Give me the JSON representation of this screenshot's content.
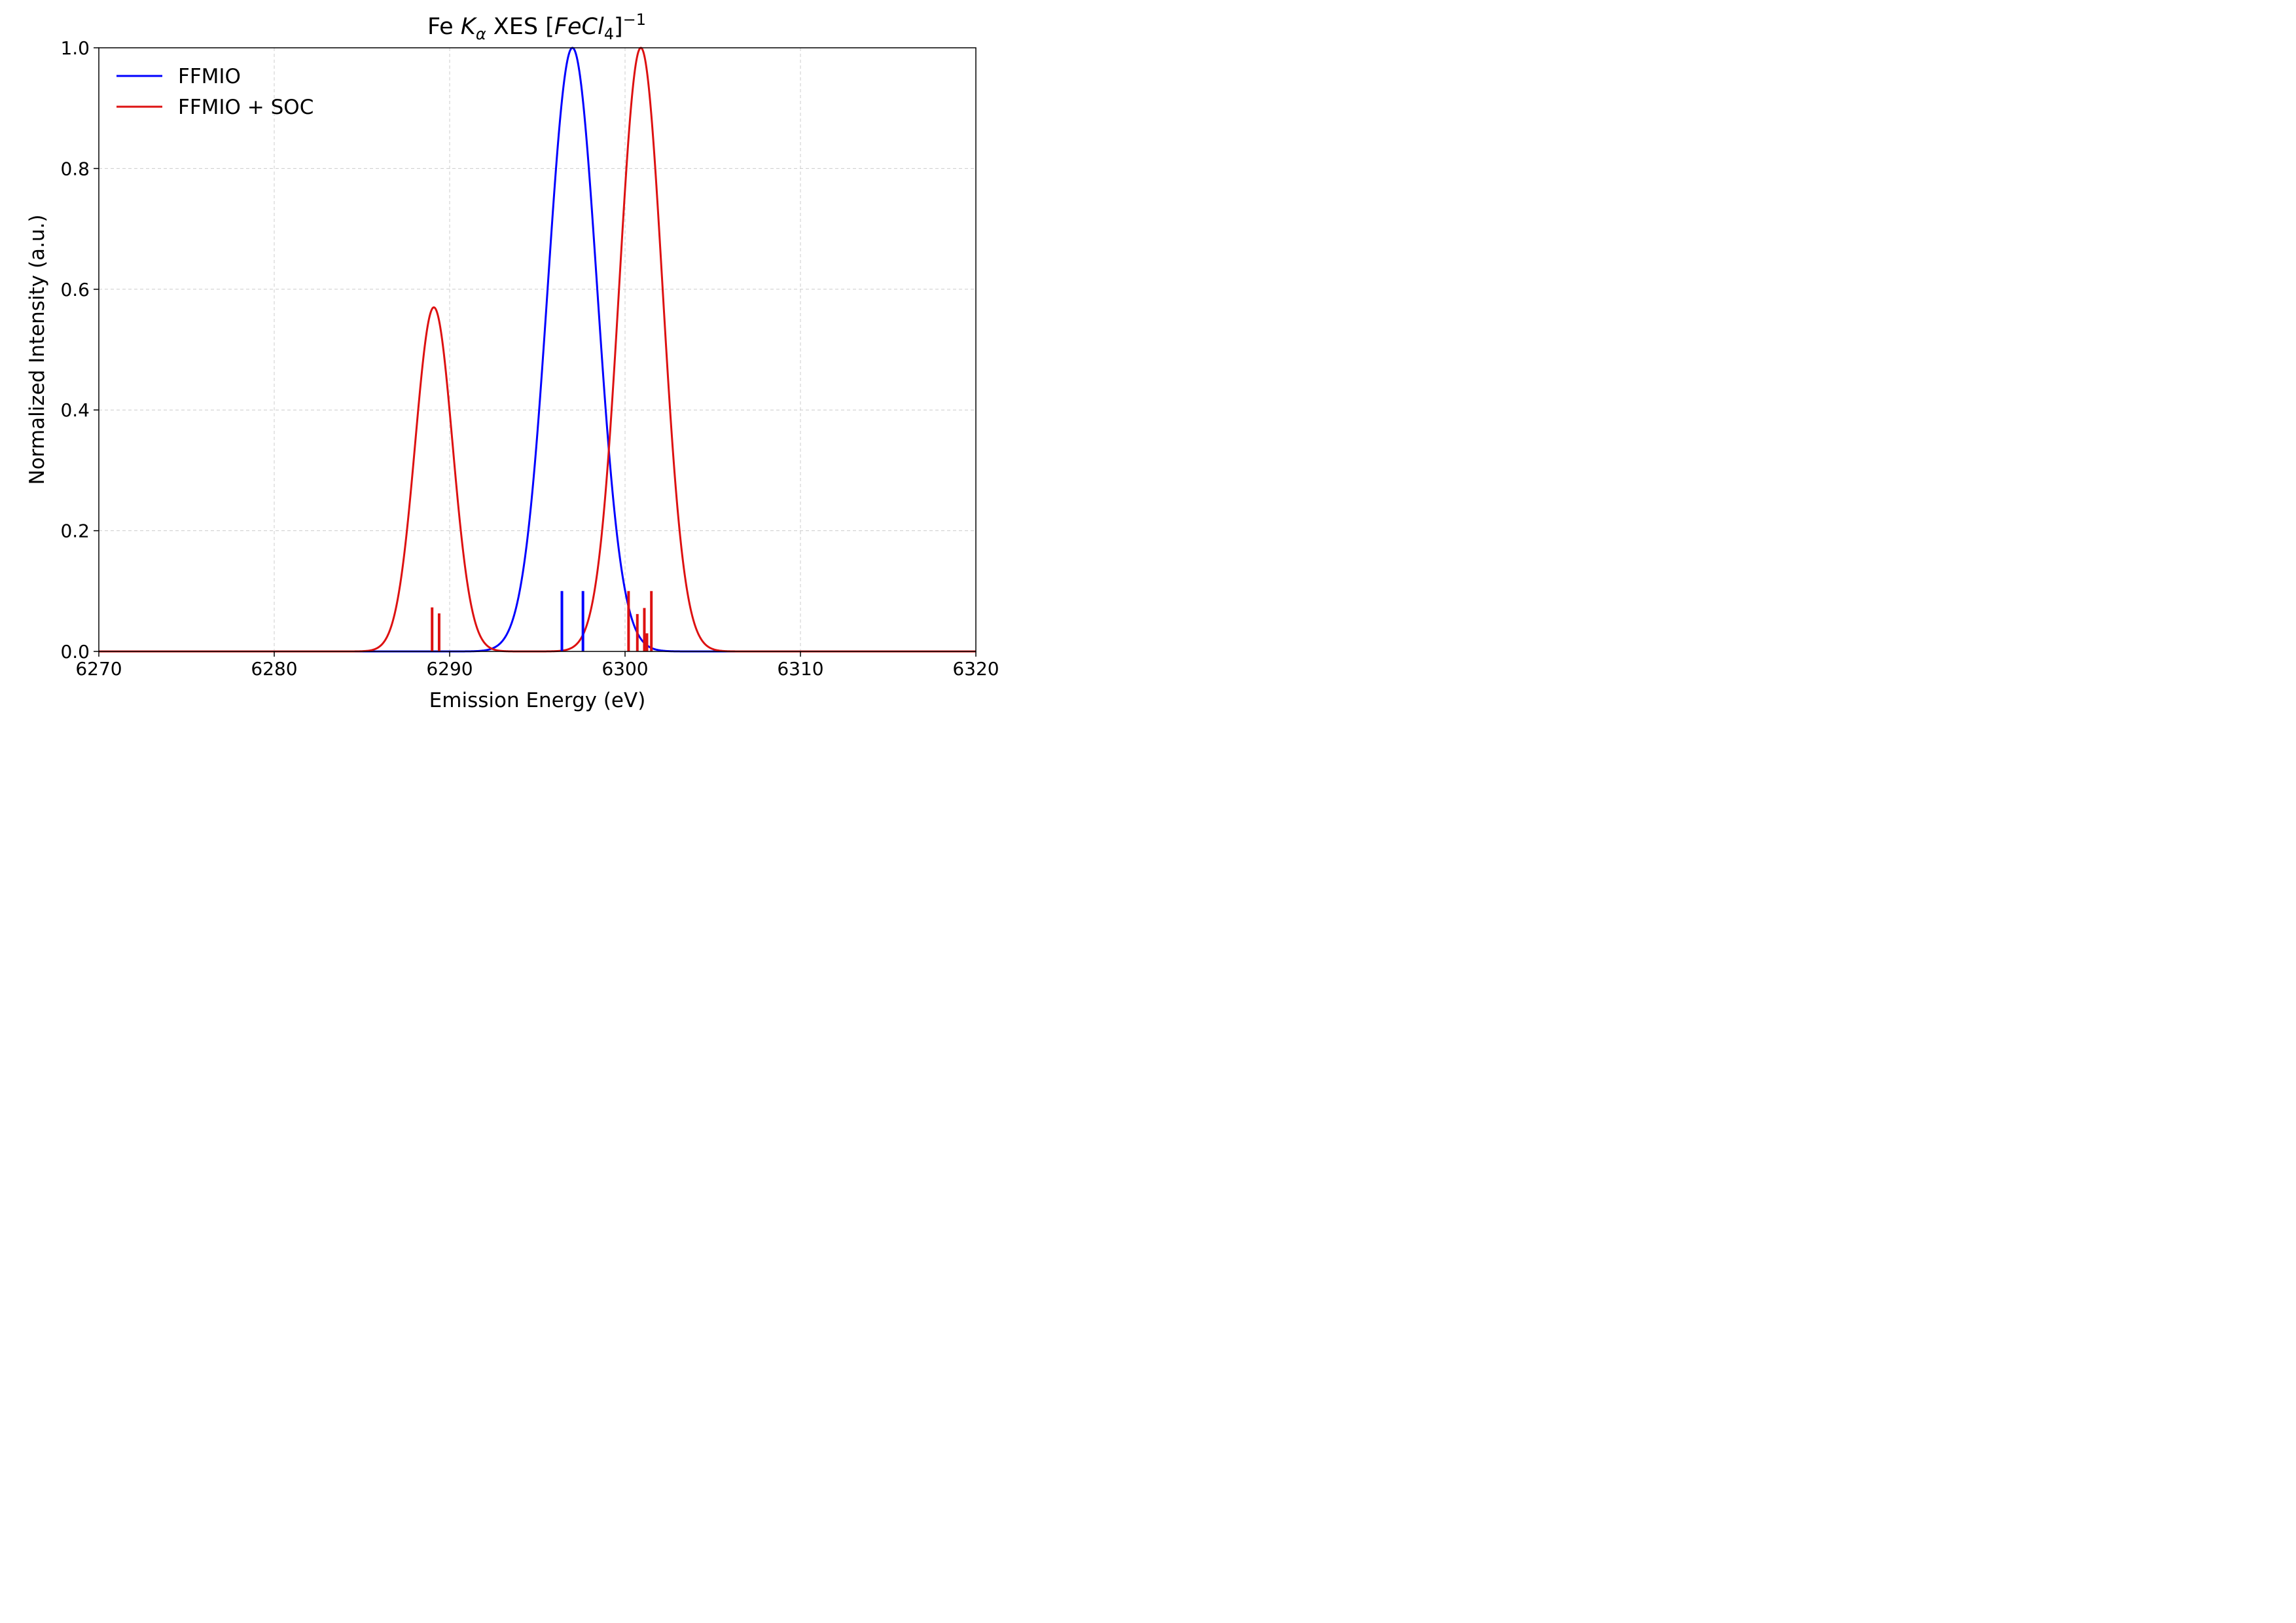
{
  "chart_data": {
    "type": "line",
    "title": {
      "prefix": "Fe ",
      "k": "K",
      "alpha": "α",
      "middle": " XES  [",
      "fecl": "FeCl",
      "four": "4",
      "close": "]",
      "sup": "−1"
    },
    "xlabel": "Emission Energy (eV)",
    "ylabel": "Normalized Intensity (a.u.)",
    "xlim": [
      6270,
      6320
    ],
    "ylim": [
      0,
      1.0
    ],
    "xticks": [
      6270,
      6280,
      6290,
      6300,
      6310,
      6320
    ],
    "xtick_labels": [
      "6270",
      "6280",
      "6290",
      "6300",
      "6310",
      "6320"
    ],
    "yticks": [
      0,
      0.2,
      0.4,
      0.6,
      0.8,
      1.0
    ],
    "ytick_labels": [
      "0.0",
      "0.2",
      "0.4",
      "0.6",
      "0.8",
      "1.0"
    ],
    "grid": true,
    "legend_position": "top-left",
    "series": [
      {
        "name": "FFMIO",
        "color": "#0000ff",
        "peaks": [
          {
            "center": 6297.0,
            "height": 1.0,
            "fwhm": 3.3
          }
        ]
      },
      {
        "name": "FFMIO + SOC",
        "color": "#dd1111",
        "peaks": [
          {
            "center": 6289.1,
            "height": 0.57,
            "fwhm": 2.5
          },
          {
            "center": 6300.9,
            "height": 1.0,
            "fwhm": 2.9
          }
        ]
      }
    ],
    "stick_series": [
      {
        "color": "#0000ff",
        "sticks": [
          {
            "x": 6296.4,
            "y": 0.1
          },
          {
            "x": 6297.6,
            "y": 0.1
          }
        ]
      },
      {
        "color": "#dd1111",
        "sticks": [
          {
            "x": 6289.0,
            "y": 0.073
          },
          {
            "x": 6289.4,
            "y": 0.063
          },
          {
            "x": 6300.2,
            "y": 0.1
          },
          {
            "x": 6300.7,
            "y": 0.062
          },
          {
            "x": 6301.1,
            "y": 0.072
          },
          {
            "x": 6301.25,
            "y": 0.03
          },
          {
            "x": 6301.5,
            "y": 0.1
          }
        ]
      }
    ]
  }
}
